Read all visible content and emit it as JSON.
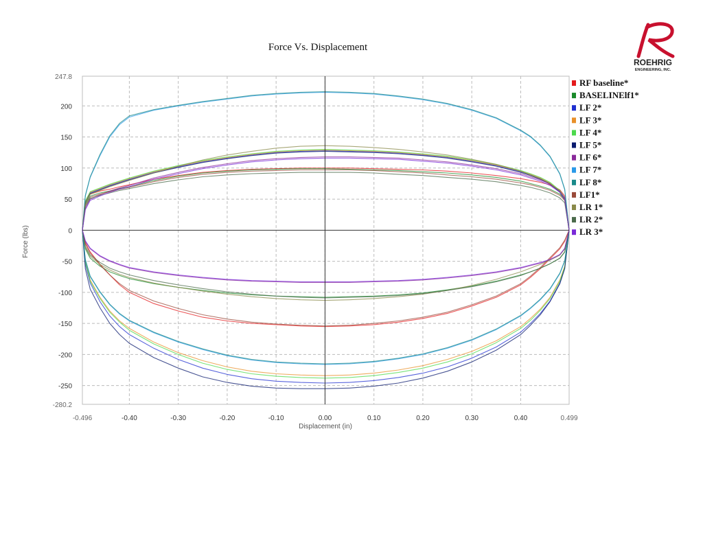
{
  "chart_data": {
    "type": "line",
    "title": "Force Vs. Displacement",
    "xlabel": "Displacement (in)",
    "ylabel": "Force (lbs)",
    "xlim": [
      -0.496,
      0.499
    ],
    "ylim": [
      -280.2,
      247.8
    ],
    "x_ticks": [
      "-0.496",
      "-0.40",
      "-0.30",
      "-0.20",
      "-0.10",
      "0.00",
      "0.10",
      "0.20",
      "0.30",
      "0.40",
      "0.499"
    ],
    "y_ticks": [
      "247.8",
      "200",
      "150",
      "100",
      "50",
      "0",
      "-50",
      "-100",
      "-150",
      "-200",
      "-250",
      "-280.2"
    ],
    "grid": true,
    "legend_position": "right",
    "x": [
      -0.496,
      -0.49,
      -0.48,
      -0.46,
      -0.44,
      -0.42,
      -0.4,
      -0.35,
      -0.3,
      -0.25,
      -0.2,
      -0.15,
      -0.1,
      -0.05,
      0.0,
      0.05,
      0.1,
      0.15,
      0.2,
      0.25,
      0.3,
      0.35,
      0.4,
      0.42,
      0.44,
      0.46,
      0.48,
      0.49,
      0.499
    ],
    "series": [
      {
        "name": "RF baseline*",
        "color": "#e41a1c",
        "upper": [
          0,
          45,
          58,
          63,
          66,
          70,
          73,
          82,
          88,
          93,
          96,
          98,
          99,
          100,
          100,
          100,
          99,
          98,
          97,
          95,
          92,
          88,
          83,
          80,
          77,
          73,
          65,
          55,
          0
        ],
        "lower": [
          0,
          -20,
          -35,
          -55,
          -72,
          -88,
          -100,
          -118,
          -130,
          -140,
          -146,
          -150,
          -152,
          -154,
          -155,
          -154,
          -152,
          -148,
          -142,
          -134,
          -122,
          -108,
          -88,
          -76,
          -62,
          -46,
          -30,
          -18,
          0
        ]
      },
      {
        "name": "BASELINElf1*",
        "color": "#1a8a2a",
        "upper": [
          0,
          42,
          55,
          60,
          63,
          67,
          70,
          80,
          87,
          92,
          95,
          97,
          98,
          99,
          99,
          98,
          97,
          96,
          94,
          92,
          89,
          85,
          79,
          75,
          71,
          66,
          58,
          50,
          0
        ],
        "lower": [
          0,
          -30,
          -45,
          -58,
          -67,
          -73,
          -78,
          -86,
          -92,
          -97,
          -101,
          -104,
          -106,
          -107,
          -108,
          -107,
          -106,
          -104,
          -101,
          -96,
          -90,
          -82,
          -72,
          -67,
          -61,
          -54,
          -45,
          -35,
          0
        ]
      },
      {
        "name": "LF 2*",
        "color": "#1f2fd0",
        "upper": [
          0,
          45,
          60,
          66,
          72,
          77,
          82,
          93,
          102,
          110,
          116,
          121,
          125,
          127,
          128,
          127,
          126,
          124,
          121,
          117,
          111,
          104,
          94,
          89,
          83,
          75,
          62,
          50,
          0
        ],
        "lower": [
          0,
          -55,
          -85,
          -115,
          -138,
          -155,
          -168,
          -190,
          -208,
          -222,
          -232,
          -239,
          -243,
          -245,
          -246,
          -245,
          -242,
          -237,
          -230,
          -220,
          -206,
          -188,
          -164,
          -150,
          -134,
          -114,
          -85,
          -60,
          0
        ]
      },
      {
        "name": "LF 3*",
        "color": "#e8902a",
        "upper": [
          0,
          46,
          61,
          67,
          73,
          78,
          83,
          94,
          103,
          111,
          117,
          122,
          126,
          128,
          129,
          128,
          127,
          125,
          122,
          118,
          112,
          105,
          95,
          90,
          84,
          76,
          63,
          51,
          0
        ],
        "lower": [
          0,
          -50,
          -80,
          -108,
          -130,
          -146,
          -158,
          -180,
          -197,
          -210,
          -220,
          -227,
          -231,
          -233,
          -234,
          -233,
          -230,
          -225,
          -218,
          -208,
          -195,
          -178,
          -155,
          -142,
          -127,
          -108,
          -80,
          -58,
          0
        ]
      },
      {
        "name": "LF 4*",
        "color": "#4cd94c",
        "upper": [
          0,
          47,
          62,
          68,
          74,
          79,
          84,
          95,
          104,
          112,
          118,
          123,
          127,
          129,
          130,
          129,
          128,
          126,
          123,
          119,
          113,
          106,
          96,
          91,
          85,
          77,
          64,
          52,
          0
        ],
        "lower": [
          0,
          -52,
          -82,
          -110,
          -132,
          -148,
          -161,
          -183,
          -200,
          -214,
          -224,
          -231,
          -235,
          -237,
          -238,
          -237,
          -234,
          -229,
          -222,
          -212,
          -199,
          -181,
          -158,
          -145,
          -129,
          -110,
          -82,
          -59,
          0
        ]
      },
      {
        "name": "LF 5*",
        "color": "#0a1a6e",
        "upper": [
          0,
          44,
          59,
          65,
          71,
          76,
          81,
          92,
          101,
          109,
          115,
          120,
          124,
          126,
          127,
          126,
          125,
          123,
          120,
          116,
          110,
          103,
          93,
          88,
          82,
          74,
          61,
          49,
          0
        ],
        "lower": [
          0,
          -62,
          -95,
          -125,
          -150,
          -168,
          -182,
          -205,
          -222,
          -236,
          -245,
          -251,
          -254,
          -255,
          -255,
          -254,
          -251,
          -246,
          -238,
          -227,
          -212,
          -193,
          -168,
          -153,
          -136,
          -115,
          -86,
          -62,
          0
        ]
      },
      {
        "name": "LF 6*",
        "color": "#8a2a9a",
        "upper": [
          0,
          35,
          50,
          57,
          63,
          68,
          72,
          84,
          93,
          101,
          107,
          112,
          115,
          117,
          118,
          118,
          117,
          116,
          113,
          110,
          105,
          99,
          91,
          86,
          81,
          74,
          63,
          52,
          0
        ],
        "lower": [
          0,
          -18,
          -30,
          -42,
          -50,
          -56,
          -61,
          -68,
          -73,
          -77,
          -80,
          -82,
          -83,
          -84,
          -84,
          -84,
          -83,
          -82,
          -80,
          -77,
          -73,
          -68,
          -61,
          -57,
          -53,
          -48,
          -40,
          -30,
          0
        ]
      },
      {
        "name": "LF 7*",
        "color": "#2a9ae8",
        "upper": [
          0,
          55,
          85,
          120,
          150,
          170,
          182,
          193,
          200,
          206,
          211,
          216,
          219,
          221,
          222,
          221,
          219,
          215,
          210,
          203,
          193,
          180,
          160,
          150,
          136,
          118,
          90,
          65,
          0
        ],
        "lower": [
          0,
          -48,
          -75,
          -100,
          -120,
          -135,
          -146,
          -165,
          -180,
          -192,
          -202,
          -209,
          -213,
          -215,
          -216,
          -215,
          -212,
          -207,
          -200,
          -190,
          -177,
          -160,
          -138,
          -126,
          -112,
          -95,
          -70,
          -50,
          0
        ]
      },
      {
        "name": "LF 8*",
        "color": "#1a8a8a",
        "upper": [
          0,
          56,
          86,
          122,
          152,
          172,
          184,
          194,
          201,
          207,
          212,
          217,
          220,
          222,
          223,
          222,
          220,
          216,
          211,
          204,
          194,
          181,
          161,
          151,
          137,
          119,
          91,
          66,
          0
        ],
        "lower": [
          0,
          -47,
          -74,
          -99,
          -119,
          -134,
          -145,
          -164,
          -179,
          -191,
          -201,
          -208,
          -212,
          -214,
          -215,
          -214,
          -211,
          -206,
          -199,
          -189,
          -176,
          -159,
          -137,
          -125,
          -111,
          -94,
          -69,
          -49,
          0
        ]
      },
      {
        "name": "LF1*",
        "color": "#9a4a3a",
        "upper": [
          0,
          40,
          53,
          58,
          62,
          66,
          69,
          78,
          85,
          90,
          93,
          95,
          96,
          97,
          97,
          97,
          96,
          94,
          92,
          89,
          86,
          82,
          76,
          73,
          69,
          64,
          56,
          48,
          0
        ],
        "lower": [
          0,
          -22,
          -37,
          -56,
          -72,
          -86,
          -97,
          -114,
          -126,
          -136,
          -143,
          -148,
          -151,
          -153,
          -154,
          -153,
          -150,
          -146,
          -140,
          -132,
          -120,
          -106,
          -86,
          -74,
          -60,
          -44,
          -28,
          -16,
          0
        ]
      },
      {
        "name": "LR 1*",
        "color": "#8a8a4a",
        "upper": [
          0,
          44,
          58,
          64,
          70,
          75,
          80,
          92,
          103,
          113,
          121,
          127,
          132,
          135,
          136,
          135,
          133,
          130,
          126,
          121,
          114,
          106,
          95,
          89,
          83,
          75,
          63,
          50,
          0
        ],
        "lower": [
          0,
          -28,
          -42,
          -55,
          -64,
          -71,
          -76,
          -85,
          -92,
          -98,
          -103,
          -107,
          -110,
          -112,
          -113,
          -112,
          -110,
          -107,
          -103,
          -97,
          -89,
          -79,
          -67,
          -61,
          -55,
          -48,
          -40,
          -30,
          0
        ]
      },
      {
        "name": "LR 2*",
        "color": "#4a6a4a",
        "upper": [
          0,
          38,
          51,
          56,
          60,
          64,
          67,
          75,
          81,
          86,
          89,
          91,
          92,
          93,
          93,
          93,
          92,
          90,
          88,
          85,
          82,
          78,
          72,
          69,
          65,
          60,
          52,
          44,
          0
        ],
        "lower": [
          0,
          -26,
          -40,
          -52,
          -61,
          -67,
          -72,
          -81,
          -88,
          -94,
          -99,
          -103,
          -106,
          -108,
          -109,
          -108,
          -107,
          -105,
          -102,
          -97,
          -91,
          -83,
          -73,
          -67,
          -61,
          -54,
          -45,
          -35,
          0
        ]
      },
      {
        "name": "LR 3*",
        "color": "#7a2ad8",
        "upper": [
          0,
          33,
          48,
          55,
          61,
          66,
          70,
          82,
          91,
          99,
          105,
          110,
          113,
          115,
          116,
          116,
          115,
          114,
          111,
          108,
          103,
          97,
          89,
          84,
          79,
          72,
          61,
          50,
          0
        ],
        "lower": [
          0,
          -17,
          -29,
          -41,
          -49,
          -55,
          -60,
          -67,
          -72,
          -76,
          -79,
          -81,
          -82,
          -83,
          -83,
          -83,
          -82,
          -81,
          -79,
          -76,
          -72,
          -67,
          -60,
          -56,
          -52,
          -47,
          -39,
          -29,
          0
        ]
      }
    ]
  },
  "logo": {
    "brand": "ROEHRIG",
    "sub": "ENGINEERING, INC.",
    "color": "#c8102e"
  }
}
